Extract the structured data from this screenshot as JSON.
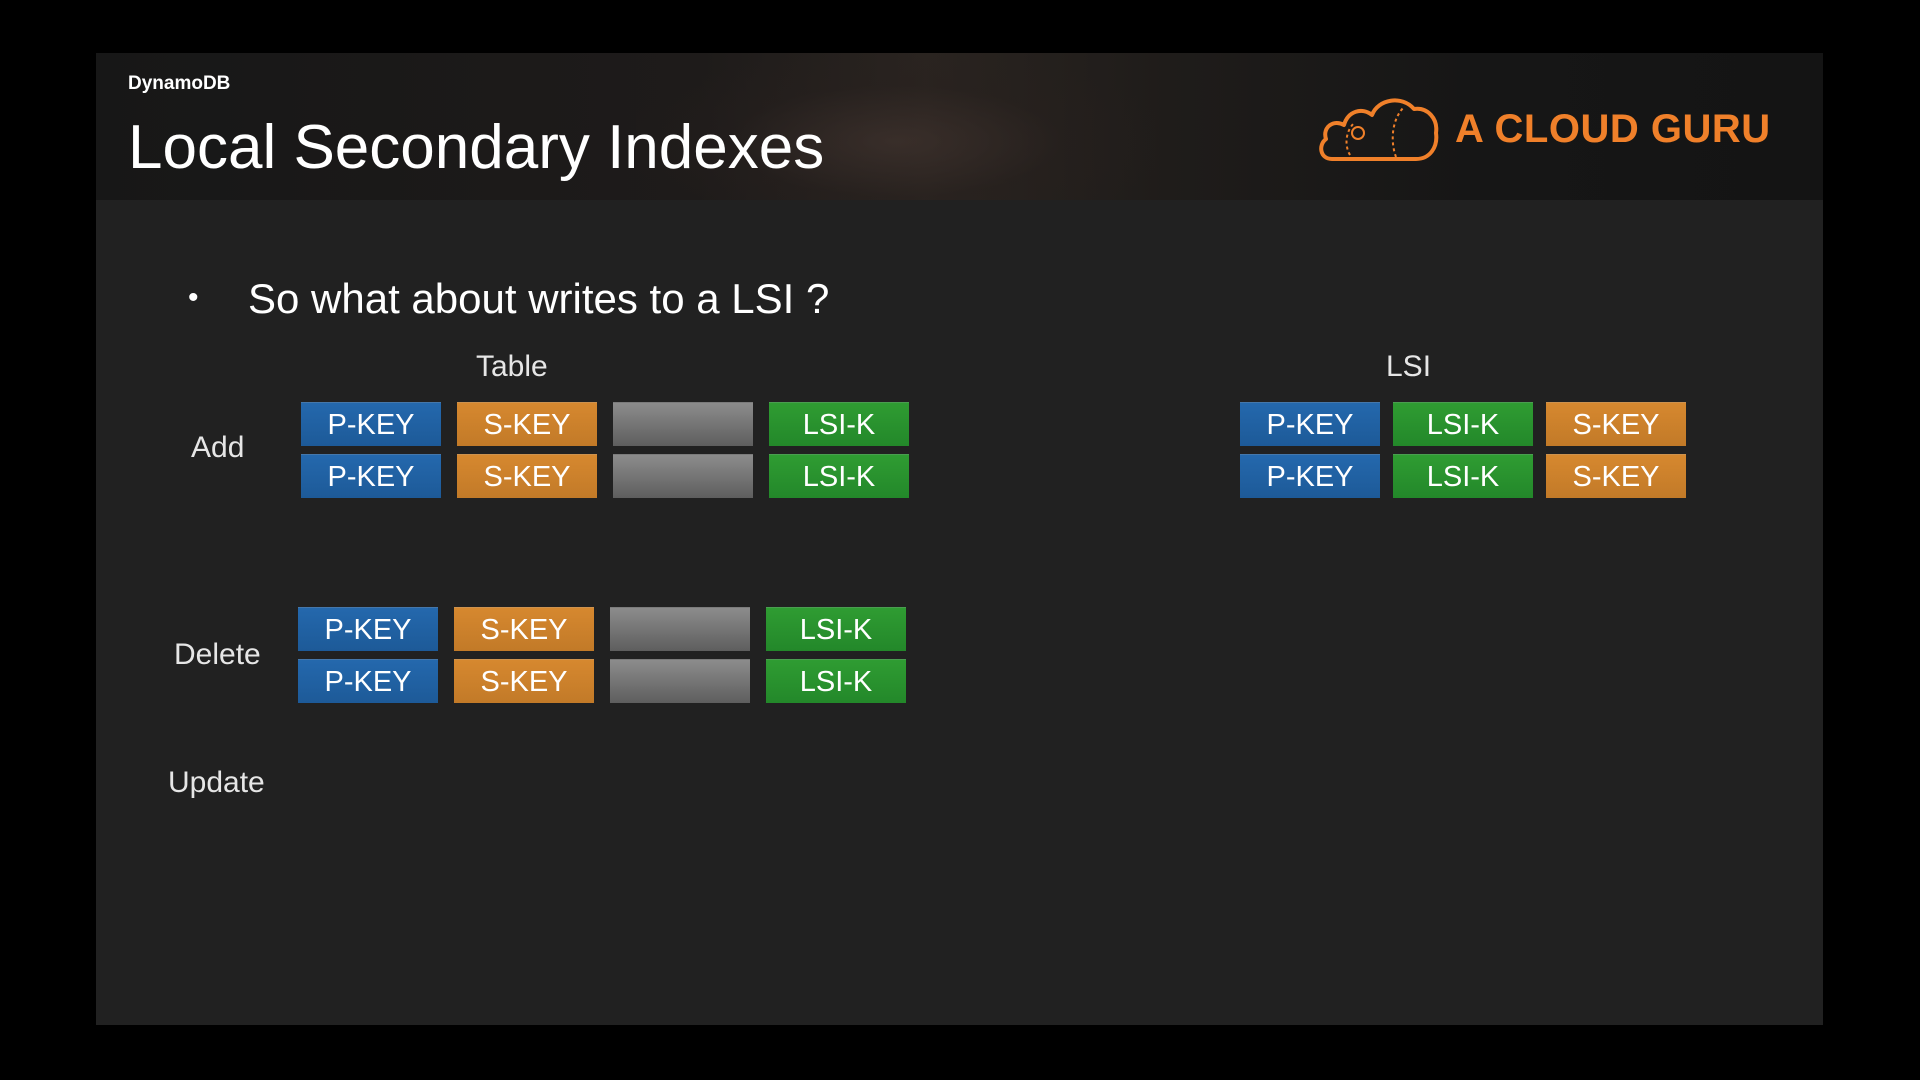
{
  "header": {
    "section": "DynamoDB",
    "title": "Local Secondary Indexes",
    "logo_text": "A CLOUD GURU"
  },
  "bullet": "So what about writes to a LSI ?",
  "table_heading": "Table",
  "lsi_heading": "LSI",
  "operations": {
    "add": "Add",
    "delete": "Delete",
    "update": "Update"
  },
  "cells": {
    "pkey": "P-KEY",
    "skey": "S-KEY",
    "lsik": "LSI-K",
    "blank": ""
  },
  "colors": {
    "pkey": "#1f5fa0",
    "skey": "#c97f2b",
    "lsik": "#2a8f2e",
    "blank": "#777777",
    "logo": "#f0802a"
  },
  "icons": {
    "bullet": "bullet-dot",
    "logo": "cloud-logo-icon"
  }
}
